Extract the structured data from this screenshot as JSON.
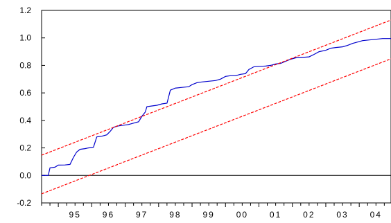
{
  "chart_data": {
    "type": "line",
    "title": "",
    "xlabel": "",
    "ylabel": "",
    "xlim": [
      1994.5,
      2004.95
    ],
    "ylim": [
      -0.2,
      1.2
    ],
    "grid": false,
    "x_tick_labels": [
      {
        "label": "95",
        "year": 1995
      },
      {
        "label": "96",
        "year": 1996
      },
      {
        "label": "97",
        "year": 1997
      },
      {
        "label": "98",
        "year": 1998
      },
      {
        "label": "99",
        "year": 1999
      },
      {
        "label": "00",
        "year": 2000
      },
      {
        "label": "01",
        "year": 2001
      },
      {
        "label": "02",
        "year": 2002
      },
      {
        "label": "03",
        "year": 2003
      },
      {
        "label": "04",
        "year": 2004
      }
    ],
    "y_ticks": [
      {
        "label": "-0.2",
        "value": -0.2
      },
      {
        "label": "0.0",
        "value": 0.0
      },
      {
        "label": "0.2",
        "value": 0.2
      },
      {
        "label": "0.4",
        "value": 0.4
      },
      {
        "label": "0.6",
        "value": 0.6
      },
      {
        "label": "0.8",
        "value": 0.8
      },
      {
        "label": "1.0",
        "value": 1.0
      },
      {
        "label": "1.2",
        "value": 1.2
      }
    ],
    "reference_line": {
      "y": 0.0,
      "color": "#000000"
    },
    "series": [
      {
        "color": "#0000cc",
        "style": "solid",
        "points": [
          [
            1994.5,
            0.0
          ],
          [
            1994.7,
            0.0
          ],
          [
            1994.75,
            0.055
          ],
          [
            1994.9,
            0.06
          ],
          [
            1995.0,
            0.075
          ],
          [
            1995.2,
            0.076
          ],
          [
            1995.35,
            0.08
          ],
          [
            1995.45,
            0.13
          ],
          [
            1995.55,
            0.17
          ],
          [
            1995.65,
            0.19
          ],
          [
            1995.8,
            0.195
          ],
          [
            1995.9,
            0.2
          ],
          [
            1996.05,
            0.205
          ],
          [
            1996.15,
            0.28
          ],
          [
            1996.3,
            0.285
          ],
          [
            1996.45,
            0.295
          ],
          [
            1996.55,
            0.32
          ],
          [
            1996.65,
            0.35
          ],
          [
            1996.8,
            0.36
          ],
          [
            1996.95,
            0.365
          ],
          [
            1997.1,
            0.37
          ],
          [
            1997.25,
            0.38
          ],
          [
            1997.4,
            0.39
          ],
          [
            1997.5,
            0.43
          ],
          [
            1997.6,
            0.46
          ],
          [
            1997.65,
            0.5
          ],
          [
            1997.8,
            0.505
          ],
          [
            1997.95,
            0.51
          ],
          [
            1998.1,
            0.52
          ],
          [
            1998.25,
            0.525
          ],
          [
            1998.35,
            0.62
          ],
          [
            1998.5,
            0.635
          ],
          [
            1998.7,
            0.64
          ],
          [
            1998.9,
            0.645
          ],
          [
            1999.0,
            0.66
          ],
          [
            1999.15,
            0.675
          ],
          [
            1999.3,
            0.68
          ],
          [
            1999.5,
            0.685
          ],
          [
            1999.7,
            0.69
          ],
          [
            1999.85,
            0.7
          ],
          [
            2000.0,
            0.72
          ],
          [
            2000.15,
            0.725
          ],
          [
            2000.3,
            0.725
          ],
          [
            2000.45,
            0.735
          ],
          [
            2000.6,
            0.74
          ],
          [
            2000.7,
            0.77
          ],
          [
            2000.85,
            0.79
          ],
          [
            2001.0,
            0.793
          ],
          [
            2001.2,
            0.795
          ],
          [
            2001.35,
            0.8
          ],
          [
            2001.5,
            0.81
          ],
          [
            2001.65,
            0.815
          ],
          [
            2001.8,
            0.83
          ],
          [
            2001.95,
            0.845
          ],
          [
            2002.1,
            0.855
          ],
          [
            2002.3,
            0.858
          ],
          [
            2002.5,
            0.862
          ],
          [
            2002.65,
            0.88
          ],
          [
            2002.8,
            0.9
          ],
          [
            2003.0,
            0.91
          ],
          [
            2003.15,
            0.925
          ],
          [
            2003.3,
            0.93
          ],
          [
            2003.5,
            0.935
          ],
          [
            2003.65,
            0.945
          ],
          [
            2003.8,
            0.96
          ],
          [
            2003.95,
            0.97
          ],
          [
            2004.1,
            0.98
          ],
          [
            2004.3,
            0.985
          ],
          [
            2004.5,
            0.99
          ],
          [
            2004.7,
            0.995
          ],
          [
            2004.95,
            0.995
          ]
        ]
      },
      {
        "color": "#ff0000",
        "style": "dashed",
        "points": [
          [
            1994.5,
            0.147
          ],
          [
            2004.95,
            1.13
          ]
        ]
      },
      {
        "color": "#ff0000",
        "style": "dashed",
        "points": [
          [
            1994.5,
            -0.134
          ],
          [
            2004.95,
            0.848
          ]
        ]
      }
    ]
  }
}
